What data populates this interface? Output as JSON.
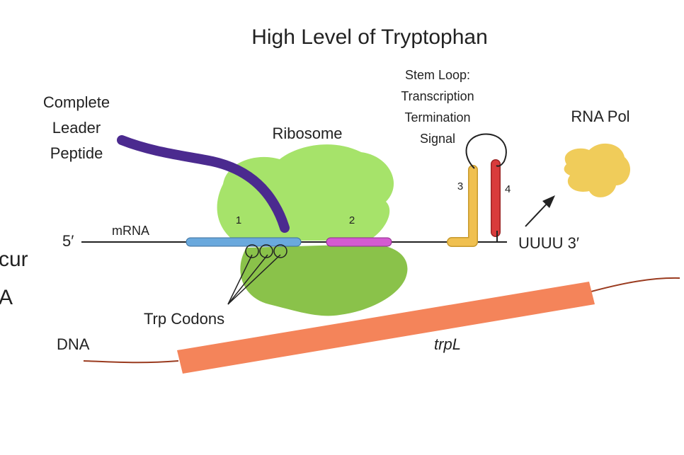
{
  "title": "High Level of Tryptophan",
  "left_cut_text": [
    "cur",
    "A"
  ],
  "labels": {
    "leader_peptide": [
      "Complete",
      "Leader",
      "Peptide"
    ],
    "ribosome": "Ribosome",
    "stem_loop": [
      "Stem Loop:",
      "Transcription",
      "Termination",
      "Signal"
    ],
    "rna_pol": "RNA Pol",
    "five_prime": "5′",
    "mrna": "mRNA",
    "uuuu": "UUUU 3′",
    "trp_codons": "Trp Codons",
    "dna": "DNA",
    "gene": "trpL"
  },
  "regions": [
    "1",
    "2",
    "3",
    "4"
  ],
  "colors": {
    "ribosome_small": "#a6e36a",
    "ribosome_large": "#8ac24a",
    "peptide": "#4b2a8f",
    "region1": "#6aa9dd",
    "region2": "#d45ad1",
    "region3": "#f0c050",
    "region4": "#d93b3b",
    "rna_pol": "#f0cc5a",
    "gene": "#f4845a",
    "dna_line": "#9a3b1f"
  }
}
